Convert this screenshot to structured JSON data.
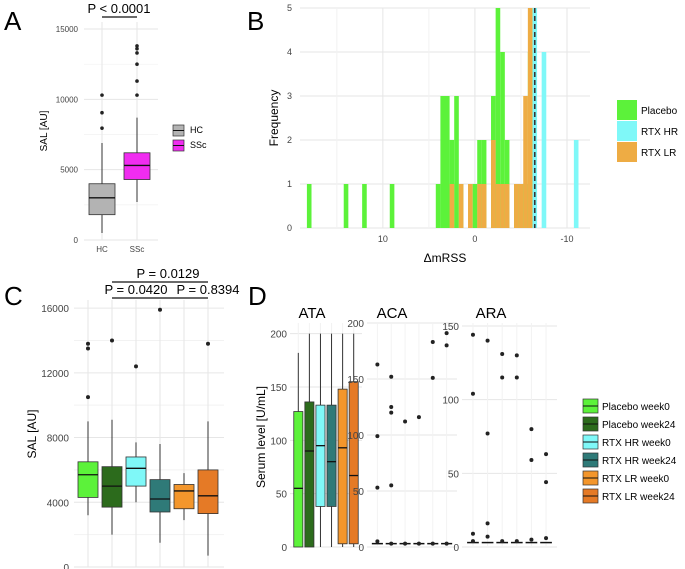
{
  "colors": {
    "hc": "#b3b3b3",
    "ssc": "#f02cf0",
    "placebo": "#5cf23a",
    "rtx_hr": "#7ff8f8",
    "rtx_lr": "#eeac44",
    "placebo_w0": "#5cf23a",
    "placebo_w24": "#2c6b1c",
    "rtx_hr_w0": "#7ff8f8",
    "rtx_hr_w24": "#2f7a78",
    "rtx_lr_w0": "#f3962c",
    "rtx_lr_w24": "#e57a26",
    "dashed": "#333333"
  },
  "chart_data": [
    {
      "panel": "A",
      "type": "box",
      "ylabel": "SAL [AU]",
      "ylim": [
        0,
        15500
      ],
      "yticks": [
        "0",
        "5000",
        "10000",
        "15000"
      ],
      "categories": [
        "HC",
        "SSc"
      ],
      "legend": {
        "position": "right",
        "entries": [
          "HC",
          "SSc"
        ]
      },
      "annotation": "P < 0.0001",
      "series": [
        {
          "name": "HC",
          "min": 500,
          "q1": 1800,
          "median": 3000,
          "q3": 4000,
          "max": 6900,
          "outliers": [
            7950,
            9050,
            10300
          ]
        },
        {
          "name": "SSc",
          "min": 2700,
          "q1": 4300,
          "median": 5300,
          "q3": 6200,
          "max": 8700,
          "outliers": [
            10300,
            11300,
            12500,
            13300,
            13600,
            13800
          ]
        }
      ]
    },
    {
      "panel": "B",
      "type": "histogram",
      "xlabel": "ΔmRSS",
      "ylabel": "Frequency",
      "xlim": [
        19,
        -12.5
      ],
      "ylim": [
        0,
        5
      ],
      "xticks": [
        "10",
        "0",
        "-10"
      ],
      "yticks": [
        "0",
        "1",
        "2",
        "3",
        "4",
        "5"
      ],
      "legend": {
        "position": "right",
        "entries": [
          "Placebo",
          "RTX HR",
          "RTX LR"
        ]
      },
      "reference_line": -6.5,
      "bin_width": 0.5,
      "series": [
        {
          "name": "Placebo",
          "bins": [
            [
              18,
              1
            ],
            [
              14,
              1
            ],
            [
              12,
              1
            ],
            [
              9,
              1
            ],
            [
              4,
              1
            ],
            [
              3.5,
              3
            ],
            [
              3,
              3
            ],
            [
              2.5,
              2
            ],
            [
              2,
              3
            ],
            [
              1.5,
              1
            ],
            [
              0,
              1
            ],
            [
              -0.5,
              2
            ],
            [
              -1,
              2
            ],
            [
              -2,
              3
            ],
            [
              -2.5,
              5
            ],
            [
              -3,
              4
            ],
            [
              -3.5,
              2
            ],
            [
              -4.5,
              1
            ],
            [
              -5,
              1
            ],
            [
              -5.5,
              1
            ],
            [
              -6,
              4
            ]
          ]
        },
        {
          "name": "RTX HR",
          "bins": [
            [
              -6.5,
              5
            ],
            [
              -7.5,
              4
            ],
            [
              -11,
              2
            ]
          ]
        },
        {
          "name": "RTX LR",
          "bins": [
            [
              2.5,
              1
            ],
            [
              1.5,
              1
            ],
            [
              0.5,
              1
            ],
            [
              -0.5,
              1
            ],
            [
              -1,
              1
            ],
            [
              -2,
              2
            ],
            [
              -2.5,
              1
            ],
            [
              -3,
              1
            ],
            [
              -3.5,
              1
            ],
            [
              -4.5,
              1
            ],
            [
              -5,
              1
            ],
            [
              -5.5,
              3
            ],
            [
              -6,
              5
            ]
          ]
        }
      ]
    },
    {
      "panel": "C",
      "type": "box",
      "ylabel": "SAL [AU]",
      "ylim": [
        0,
        16500
      ],
      "yticks": [
        "0",
        "4000",
        "8000",
        "12000",
        "16000"
      ],
      "annotations": [
        "P = 0.0129",
        "P = 0.0420",
        "P = 0.8394"
      ],
      "series": [
        {
          "name": "Placebo week0",
          "min": 3200,
          "q1": 4300,
          "median": 5700,
          "q3": 6500,
          "max": 9000,
          "outliers": [
            10500,
            13500,
            13800
          ]
        },
        {
          "name": "Placebo week24",
          "min": 2000,
          "q1": 3700,
          "median": 5000,
          "q3": 6200,
          "max": 9100,
          "outliers": [
            14000
          ]
        },
        {
          "name": "RTX HR week0",
          "min": 4000,
          "q1": 5000,
          "median": 6100,
          "q3": 6800,
          "max": 7700,
          "outliers": [
            12400
          ]
        },
        {
          "name": "RTX HR week24",
          "min": 1500,
          "q1": 3400,
          "median": 4200,
          "q3": 5400,
          "max": 7600,
          "outliers": [
            15900
          ]
        },
        {
          "name": "RTX LR week0",
          "min": 2900,
          "q1": 3600,
          "median": 4700,
          "q3": 5100,
          "max": 5800,
          "outliers": []
        },
        {
          "name": "RTX LR week24",
          "min": 700,
          "q1": 3300,
          "median": 4400,
          "q3": 6000,
          "max": 9000,
          "outliers": [
            13800
          ]
        }
      ]
    },
    {
      "panel": "D",
      "type": "box",
      "facet": "ATA",
      "ylabel": "Serum level [U/mL]",
      "ylim": [
        0,
        210
      ],
      "yticks": [
        "0",
        "50",
        "100",
        "150",
        "200"
      ],
      "series": [
        {
          "name": "Placebo week0",
          "min": 0,
          "q1": 0,
          "median": 55,
          "q3": 127,
          "max": 182
        },
        {
          "name": "Placebo week24",
          "min": 0,
          "q1": 0,
          "median": 90,
          "q3": 136,
          "max": 200
        },
        {
          "name": "RTX HR week0",
          "min": 0,
          "q1": 38,
          "median": 95,
          "q3": 133,
          "max": 200
        },
        {
          "name": "RTX HR week24",
          "min": 0,
          "q1": 38,
          "median": 80,
          "q3": 133,
          "max": 200
        },
        {
          "name": "RTX LR week0",
          "min": 0,
          "q1": 3,
          "median": 93,
          "q3": 148,
          "max": 200
        },
        {
          "name": "RTX LR week24",
          "min": 0,
          "q1": 3,
          "median": 67,
          "q3": 155,
          "max": 200
        }
      ]
    },
    {
      "panel": "D",
      "type": "box",
      "facet": "ACA",
      "ylim": [
        0,
        200
      ],
      "yticks": [
        "0",
        "50",
        "100",
        "150",
        "200"
      ],
      "series": [
        {
          "name": "Placebo week0",
          "median": 3,
          "points": [
            163,
            99,
            53,
            5
          ]
        },
        {
          "name": "Placebo week24",
          "median": 3,
          "points": [
            152,
            125,
            120,
            55,
            3
          ]
        },
        {
          "name": "RTX HR week0",
          "median": 3,
          "points": [
            112,
            3
          ]
        },
        {
          "name": "RTX HR week24",
          "median": 3,
          "points": [
            116,
            3
          ]
        },
        {
          "name": "RTX LR week0",
          "median": 3,
          "points": [
            183,
            151,
            3
          ]
        },
        {
          "name": "RTX LR week24",
          "median": 3,
          "points": [
            191,
            180,
            3
          ]
        }
      ]
    },
    {
      "panel": "D",
      "type": "box",
      "facet": "ARA",
      "ylim": [
        0,
        152
      ],
      "yticks": [
        "0",
        "50",
        "100",
        "150"
      ],
      "series": [
        {
          "name": "Placebo week0",
          "median": 3,
          "points": [
            144,
            104,
            9,
            4
          ]
        },
        {
          "name": "Placebo week24",
          "median": 3,
          "points": [
            140,
            77,
            16,
            7
          ]
        },
        {
          "name": "RTX HR week0",
          "median": 3,
          "points": [
            131,
            115,
            4
          ]
        },
        {
          "name": "RTX HR week24",
          "median": 3,
          "points": [
            130,
            115,
            4
          ]
        },
        {
          "name": "RTX LR week0",
          "median": 3,
          "points": [
            80,
            59,
            5
          ]
        },
        {
          "name": "RTX LR week24",
          "median": 3,
          "points": [
            63,
            44,
            6
          ]
        }
      ]
    }
  ],
  "labels": {
    "panel_a": "A",
    "panel_b": "B",
    "panel_c": "C",
    "panel_d": "D",
    "a_legend_hc": "HC",
    "a_legend_ssc": "SSc",
    "b_legend_placebo": "Placebo",
    "b_legend_hr": "RTX HR",
    "b_legend_lr": "RTX LR",
    "d_legend": [
      "Placebo week0",
      "Placebo week24",
      "RTX HR week0",
      "RTX HR week24",
      "RTX LR week0",
      "RTX LR week24"
    ]
  }
}
